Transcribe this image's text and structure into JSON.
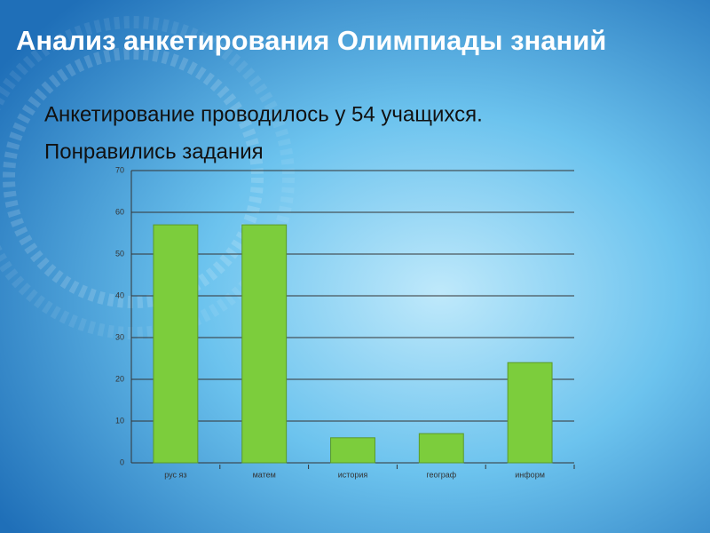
{
  "slide": {
    "title": "Анализ анкетирования Олимпиады знаний",
    "lines": [
      "Анкетирование проводилось у 54 учащихся.",
      "Понравились задания"
    ]
  },
  "chart_data": {
    "type": "bar",
    "categories": [
      "рус яз",
      "матем",
      "история",
      "географ",
      "информ"
    ],
    "values": [
      57,
      57,
      6,
      7,
      24
    ],
    "color": "#7ccd3c",
    "ylim": [
      0,
      70
    ],
    "yticks": [
      0,
      10,
      20,
      30,
      40,
      50,
      60,
      70
    ],
    "grid": true
  }
}
